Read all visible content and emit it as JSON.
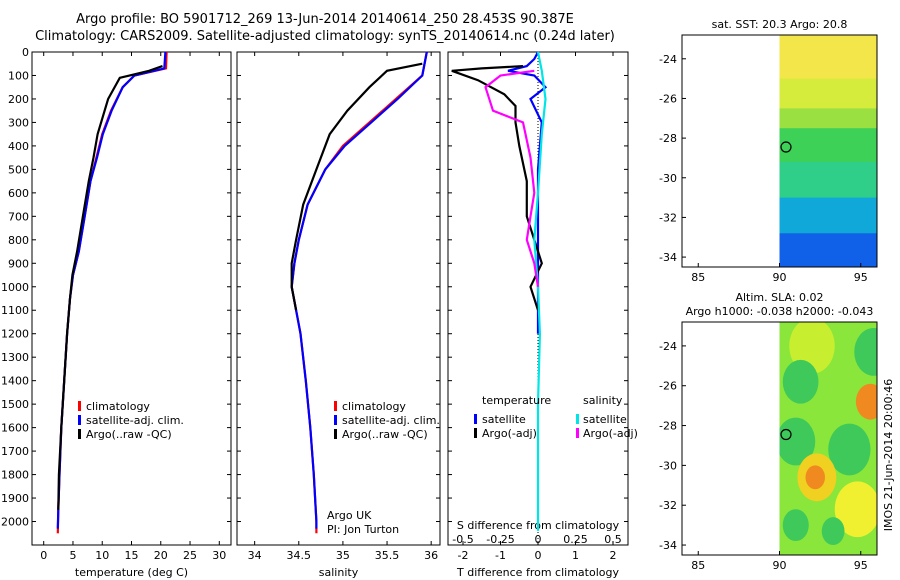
{
  "header": {
    "line1": "Argo profile: BO 5901712_269 13-Jun-2014 20140614_250 28.453S 90.387E",
    "line2": "Climatology: CARS2009. Satellite-adjusted climatology: synTS_20140614.nc (0.24d later)"
  },
  "colors": {
    "clim": "#ff0000",
    "sat": "#0000ff",
    "argo": "#000000",
    "sat_s": "#00e5e5",
    "argo_s": "#ff00ff"
  },
  "depth_ticks": [
    "0",
    "100",
    "200",
    "300",
    "400",
    "500",
    "600",
    "700",
    "800",
    "900",
    "1000",
    "1100",
    "1200",
    "1300",
    "1400",
    "1500",
    "1600",
    "1700",
    "1800",
    "1900",
    "2000"
  ],
  "chart_data": [
    {
      "type": "line",
      "panel": "temperature",
      "xlabel": "temperature (deg C)",
      "xlim": [
        -2,
        32
      ],
      "ylim": [
        2100,
        0
      ],
      "xticks": [
        "0",
        "5",
        "10",
        "15",
        "20",
        "25",
        "30"
      ],
      "xtick_values": [
        0,
        5,
        10,
        15,
        20,
        25,
        30
      ],
      "legend": [
        "climatology",
        "satellite-adj. clim.",
        "Argo(..raw -QC)"
      ],
      "series": [
        {
          "name": "climatology",
          "color_key": "clim",
          "points": [
            [
              21.0,
              0
            ],
            [
              20.9,
              70
            ],
            [
              15.5,
              100
            ],
            [
              13.5,
              150
            ],
            [
              11.5,
              250
            ],
            [
              10.0,
              350
            ],
            [
              9.0,
              450
            ],
            [
              8.0,
              550
            ],
            [
              7.0,
              700
            ],
            [
              6.0,
              850
            ],
            [
              5.0,
              950
            ],
            [
              4.5,
              1050
            ],
            [
              4.0,
              1200
            ],
            [
              3.5,
              1400
            ],
            [
              3.0,
              1600
            ],
            [
              2.7,
              1800
            ],
            [
              2.5,
              1950
            ],
            [
              2.4,
              2050
            ]
          ]
        },
        {
          "name": "satellite-adj. clim.",
          "color_key": "sat",
          "points": [
            [
              20.8,
              0
            ],
            [
              20.6,
              70
            ],
            [
              15.5,
              100
            ],
            [
              13.5,
              150
            ],
            [
              11.6,
              250
            ],
            [
              10.1,
              350
            ],
            [
              9.1,
              450
            ],
            [
              8.0,
              550
            ],
            [
              7.0,
              700
            ],
            [
              6.0,
              850
            ],
            [
              5.0,
              950
            ],
            [
              4.5,
              1050
            ],
            [
              4.0,
              1200
            ],
            [
              3.5,
              1400
            ],
            [
              3.0,
              1600
            ],
            [
              2.7,
              1800
            ],
            [
              2.5,
              1950
            ],
            [
              2.4,
              2030
            ]
          ]
        },
        {
          "name": "Argo(..raw -QC)",
          "color_key": "argo",
          "points": [
            [
              20.3,
              60
            ],
            [
              18.0,
              80
            ],
            [
              13.0,
              110
            ],
            [
              11.0,
              200
            ],
            [
              9.2,
              350
            ],
            [
              8.5,
              450
            ],
            [
              7.7,
              550
            ],
            [
              6.7,
              700
            ],
            [
              5.7,
              850
            ],
            [
              4.9,
              950
            ],
            [
              4.5,
              1050
            ],
            [
              4.0,
              1200
            ],
            [
              3.5,
              1400
            ],
            [
              3.0,
              1600
            ],
            [
              2.6,
              1800
            ],
            [
              2.5,
              1950
            ]
          ]
        }
      ]
    },
    {
      "type": "line",
      "panel": "salinity",
      "xlabel": "salinity",
      "xlim": [
        33.8,
        36.1
      ],
      "ylim": [
        2100,
        0
      ],
      "xticks": [
        "34",
        "34.5",
        "35",
        "35.5",
        "36"
      ],
      "xtick_values": [
        34,
        34.5,
        35,
        35.5,
        36
      ],
      "legend": [
        "climatology",
        "satellite-adj. clim.",
        "Argo(..raw -QC)"
      ],
      "annotation": [
        "Argo UK",
        "PI: Jon Turton"
      ],
      "series": [
        {
          "name": "climatology",
          "color_key": "clim",
          "points": [
            [
              35.95,
              0
            ],
            [
              35.9,
              100
            ],
            [
              35.6,
              200
            ],
            [
              35.3,
              300
            ],
            [
              35.0,
              400
            ],
            [
              34.8,
              500
            ],
            [
              34.6,
              650
            ],
            [
              34.5,
              800
            ],
            [
              34.45,
              900
            ],
            [
              34.42,
              1000
            ],
            [
              34.47,
              1100
            ],
            [
              34.52,
              1200
            ],
            [
              34.58,
              1400
            ],
            [
              34.63,
              1600
            ],
            [
              34.67,
              1800
            ],
            [
              34.7,
              2000
            ],
            [
              34.7,
              2050
            ]
          ]
        },
        {
          "name": "satellite-adj. clim.",
          "color_key": "sat",
          "points": [
            [
              35.95,
              0
            ],
            [
              35.9,
              100
            ],
            [
              35.62,
              200
            ],
            [
              35.32,
              300
            ],
            [
              35.02,
              400
            ],
            [
              34.8,
              500
            ],
            [
              34.6,
              650
            ],
            [
              34.5,
              800
            ],
            [
              34.45,
              900
            ],
            [
              34.42,
              1000
            ],
            [
              34.47,
              1100
            ],
            [
              34.52,
              1200
            ],
            [
              34.58,
              1400
            ],
            [
              34.63,
              1600
            ],
            [
              34.67,
              1800
            ],
            [
              34.7,
              2000
            ],
            [
              34.7,
              2030
            ]
          ]
        },
        {
          "name": "Argo(..raw -QC)",
          "color_key": "argo",
          "points": [
            [
              35.9,
              50
            ],
            [
              35.5,
              80
            ],
            [
              35.3,
              150
            ],
            [
              35.05,
              250
            ],
            [
              34.85,
              350
            ],
            [
              34.7,
              500
            ],
            [
              34.55,
              650
            ],
            [
              34.47,
              800
            ],
            [
              34.42,
              900
            ],
            [
              34.42,
              1000
            ],
            [
              34.47,
              1100
            ]
          ]
        }
      ]
    },
    {
      "type": "line",
      "panel": "difference",
      "xlabel": "T difference from climatology",
      "xlabel_top": "S difference from climatology",
      "xlim": [
        -2.4,
        2.4
      ],
      "ylim": [
        2100,
        0
      ],
      "xticks": [
        "-2",
        "-1",
        "0",
        "1",
        "2"
      ],
      "xtick_values": [
        -2,
        -1,
        0,
        1,
        2
      ],
      "sticks": [
        "-0.5",
        "-0.25",
        "0",
        "0.25",
        "0.5"
      ],
      "stick_values": [
        -2,
        -1,
        0,
        1,
        2
      ],
      "legend_t_title": "temperature",
      "legend_s_title": "salinity",
      "legend_t": [
        "satellite",
        "Argo(-adj)"
      ],
      "legend_s": [
        "satellite",
        "Argo(-adj)"
      ],
      "series": [
        {
          "name": "T satellite",
          "color_key": "sat",
          "points": [
            [
              0,
              0
            ],
            [
              -0.1,
              30
            ],
            [
              -0.3,
              60
            ],
            [
              -0.8,
              80
            ],
            [
              -0.1,
              100
            ],
            [
              0.2,
              150
            ],
            [
              -0.2,
              200
            ],
            [
              0.1,
              300
            ],
            [
              0,
              500
            ],
            [
              0,
              800
            ],
            [
              0,
              1000
            ],
            [
              0,
              1200
            ]
          ]
        },
        {
          "name": "T Argo(-adj)",
          "color_key": "argo",
          "points": [
            [
              -0.4,
              60
            ],
            [
              -1.5,
              70
            ],
            [
              -2.3,
              80
            ],
            [
              -1.6,
              120
            ],
            [
              -0.9,
              180
            ],
            [
              -0.6,
              230
            ],
            [
              -0.6,
              300
            ],
            [
              -0.5,
              400
            ],
            [
              -0.3,
              550
            ],
            [
              -0.3,
              700
            ],
            [
              -0.1,
              800
            ],
            [
              0.1,
              900
            ],
            [
              -0.2,
              1000
            ],
            [
              0,
              1100
            ]
          ]
        },
        {
          "name": "S satellite",
          "color_key": "sat_s",
          "points": [
            [
              0,
              0
            ],
            [
              0.1,
              80
            ],
            [
              0.2,
              200
            ],
            [
              0.1,
              350
            ],
            [
              0,
              600
            ],
            [
              -0.1,
              800
            ],
            [
              0,
              1000
            ],
            [
              0.05,
              1200
            ],
            [
              0,
              1500
            ],
            [
              0,
              1800
            ],
            [
              0,
              2040
            ]
          ]
        },
        {
          "name": "S Argo(-adj)",
          "color_key": "argo_s",
          "points": [
            [
              -0.1,
              80
            ],
            [
              -1.0,
              100
            ],
            [
              -1.4,
              150
            ],
            [
              -1.2,
              250
            ],
            [
              -0.4,
              300
            ],
            [
              -0.2,
              450
            ],
            [
              -0.1,
              600
            ],
            [
              -0.2,
              700
            ],
            [
              -0.3,
              800
            ],
            [
              -0.1,
              900
            ],
            [
              0,
              1000
            ]
          ]
        }
      ]
    },
    {
      "type": "heatmap",
      "panel": "sst_map",
      "title": "sat. SST: 20.3 Argo: 20.8",
      "xlim": [
        84,
        96
      ],
      "ylim": [
        -34.5,
        -22.8
      ],
      "xticks": [
        "85",
        "90",
        "95"
      ],
      "xtick_values": [
        85,
        90,
        95
      ],
      "yticks": [
        "-24",
        "-26",
        "-28",
        "-30",
        "-32",
        "-34"
      ],
      "ytick_values": [
        -24,
        -26,
        -28,
        -30,
        -32,
        -34
      ],
      "marker": [
        90.4,
        -28.45
      ],
      "bands": [
        {
          "y0": -22.8,
          "y1": -25.0,
          "color": "#f2e64a"
        },
        {
          "y0": -25.0,
          "y1": -26.5,
          "color": "#d6ec3c"
        },
        {
          "y0": -26.5,
          "y1": -27.5,
          "color": "#9ae040"
        },
        {
          "y0": -27.5,
          "y1": -29.2,
          "color": "#3ed158"
        },
        {
          "y0": -29.2,
          "y1": -31.0,
          "color": "#2fcf8a"
        },
        {
          "y0": -31.0,
          "y1": -32.8,
          "color": "#10a8d8"
        },
        {
          "y0": -32.8,
          "y1": -34.5,
          "color": "#1060e8"
        }
      ]
    },
    {
      "type": "heatmap",
      "panel": "sla_map",
      "title": "Altim. SLA: 0.02",
      "subtitle": "Argo h1000: -0.038 h2000: -0.043",
      "xlim": [
        84,
        96
      ],
      "ylim": [
        -34.5,
        -22.8
      ],
      "xticks": [
        "85",
        "90",
        "95"
      ],
      "xtick_values": [
        85,
        90,
        95
      ],
      "yticks": [
        "-24",
        "-26",
        "-28",
        "-30",
        "-32",
        "-34"
      ],
      "ytick_values": [
        -24,
        -26,
        -28,
        -30,
        -32,
        -34
      ],
      "marker": [
        90.4,
        -28.45
      ],
      "base_color": "#8ae63a",
      "blobs": [
        {
          "x": 92.0,
          "y": -24.0,
          "r": 1.4,
          "color": "#c8ee30"
        },
        {
          "x": 95.8,
          "y": -24.3,
          "r": 1.2,
          "color": "#3ec95a"
        },
        {
          "x": 91.3,
          "y": -25.8,
          "r": 1.1,
          "color": "#3ec95a"
        },
        {
          "x": 95.6,
          "y": -26.8,
          "r": 0.9,
          "color": "#f08a20"
        },
        {
          "x": 91.0,
          "y": -28.8,
          "r": 1.2,
          "color": "#3ec95a"
        },
        {
          "x": 94.3,
          "y": -29.2,
          "r": 1.3,
          "color": "#3ec95a"
        },
        {
          "x": 92.3,
          "y": -30.6,
          "r": 1.2,
          "color": "#f0d020"
        },
        {
          "x": 92.2,
          "y": -30.6,
          "r": 0.6,
          "color": "#f08a20"
        },
        {
          "x": 94.8,
          "y": -32.2,
          "r": 1.4,
          "color": "#f0f030"
        },
        {
          "x": 91.0,
          "y": -33.0,
          "r": 0.8,
          "color": "#3ec95a"
        },
        {
          "x": 93.3,
          "y": -33.3,
          "r": 0.7,
          "color": "#3ec95a"
        }
      ]
    }
  ],
  "stamp": "IMOS 21-Jun-2014 20:00:46"
}
